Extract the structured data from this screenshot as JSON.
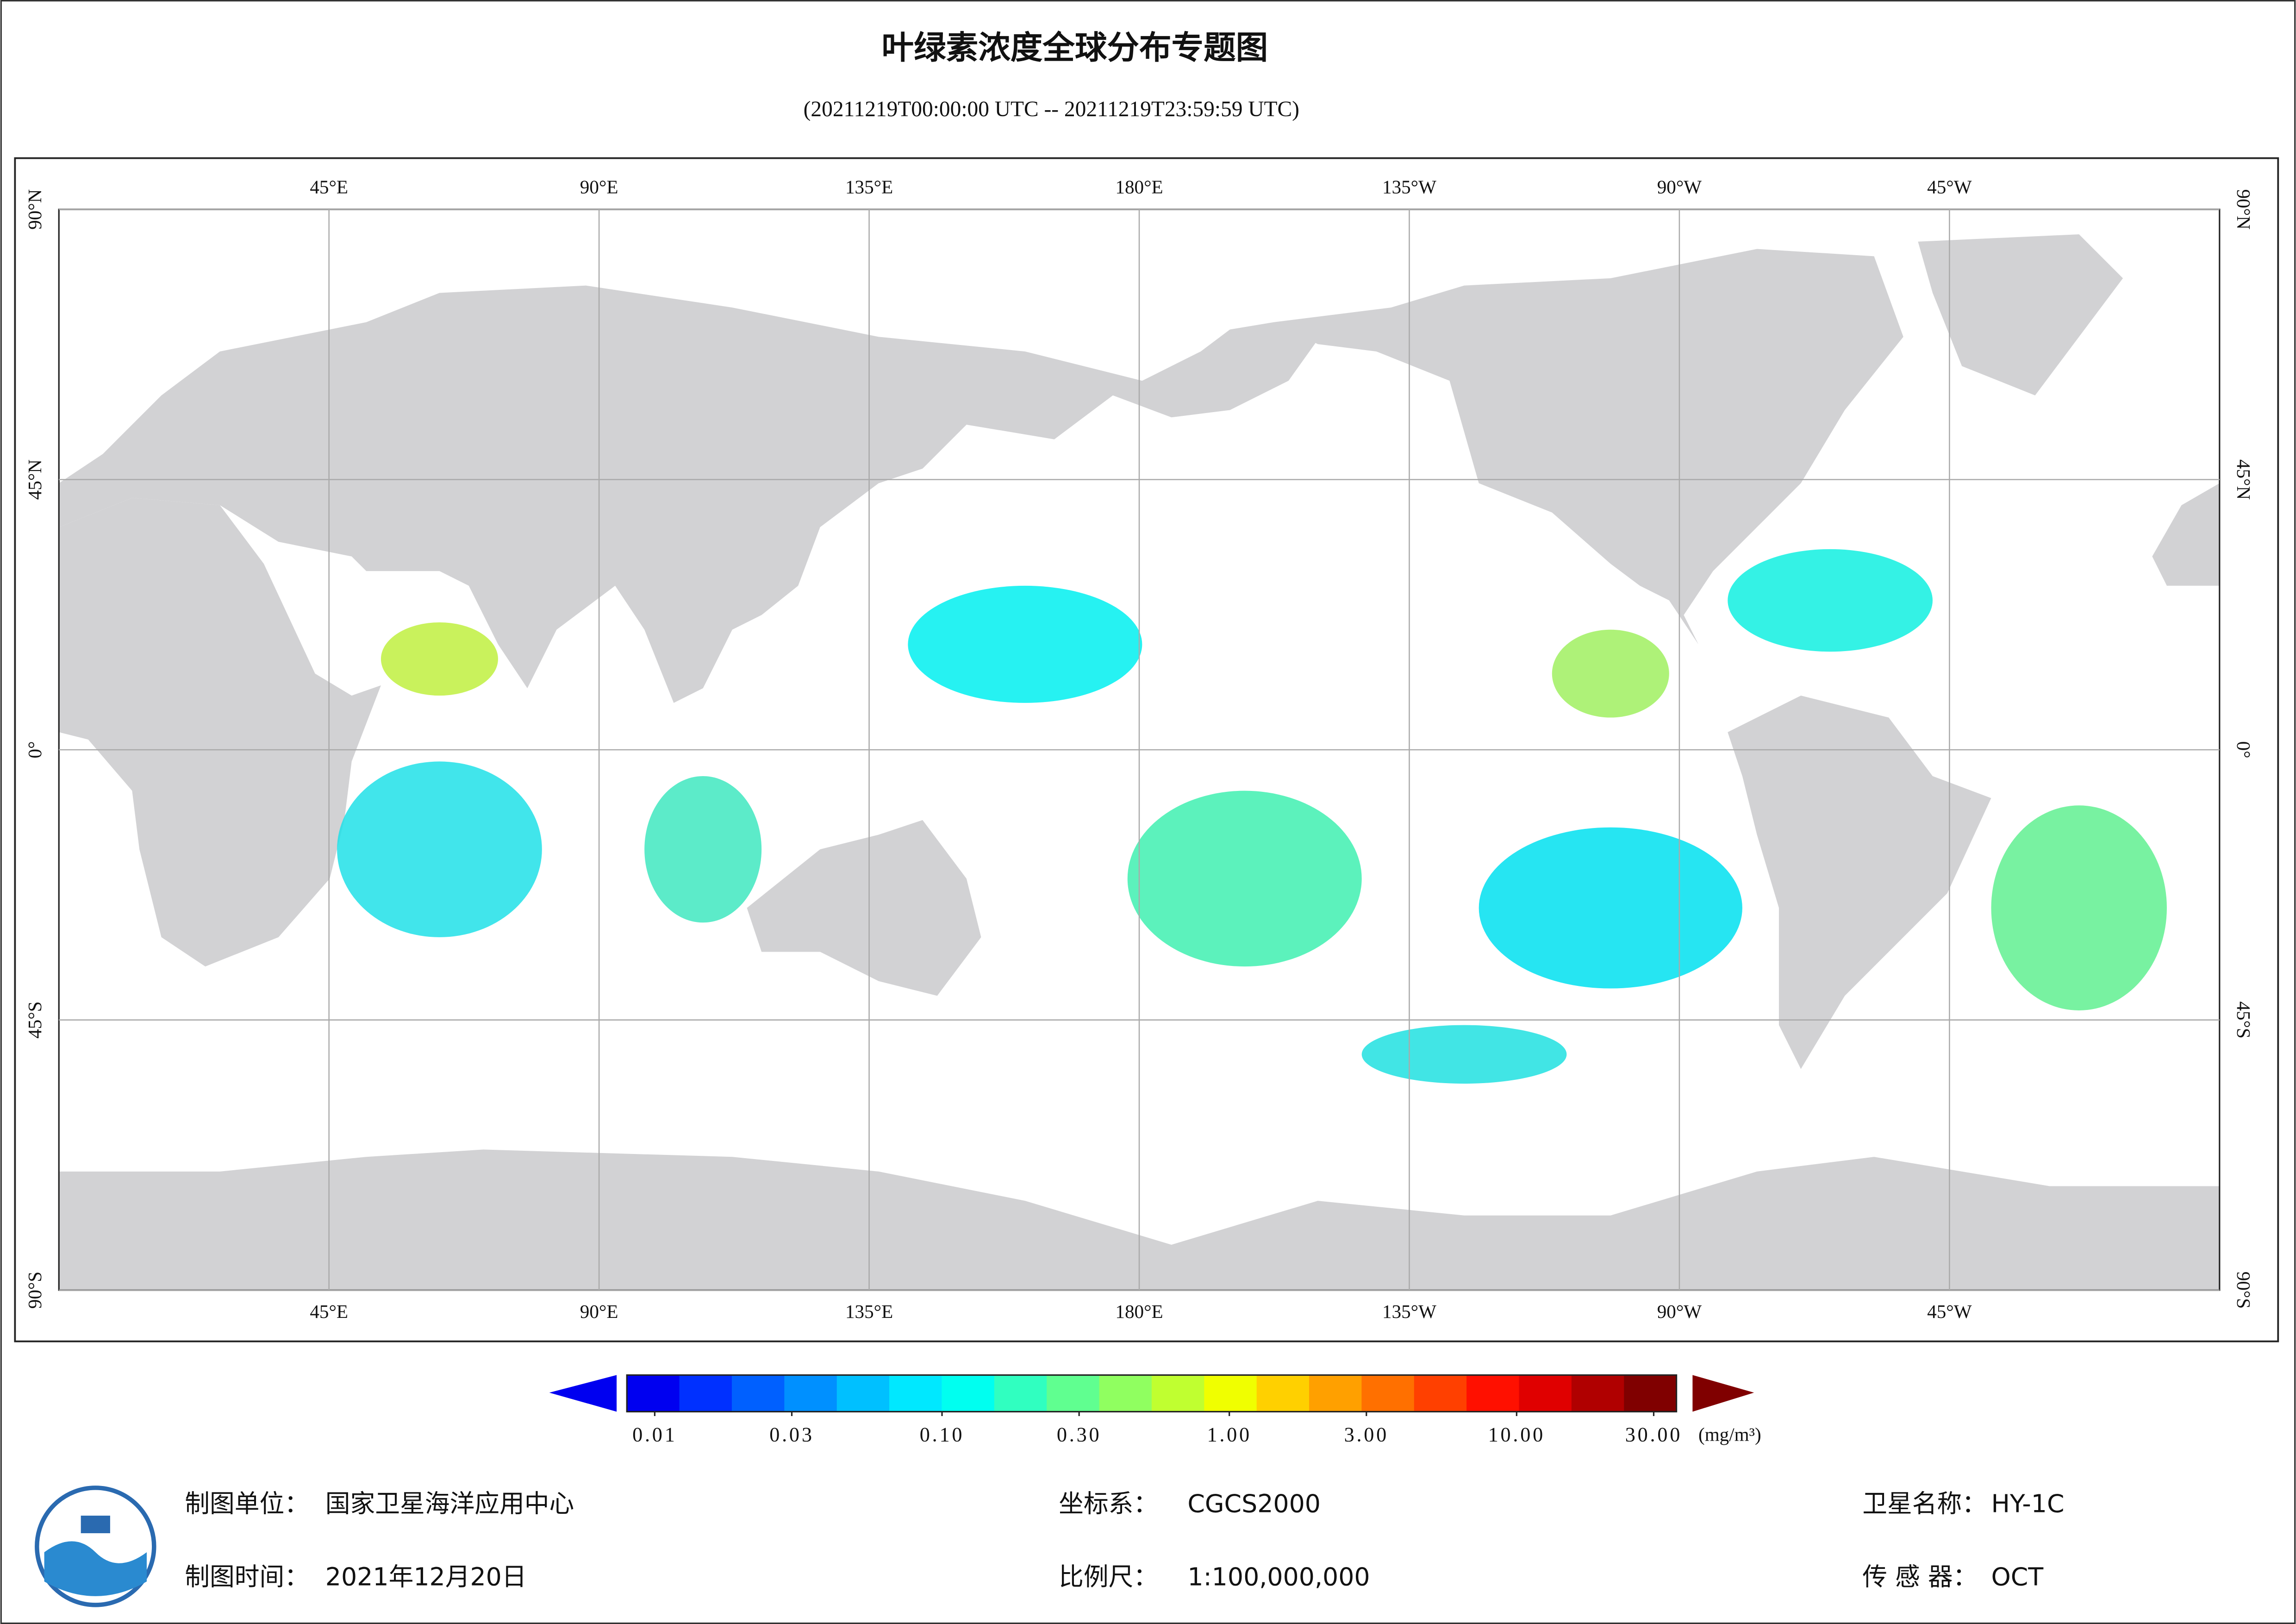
{
  "header": {
    "title": "叶绿素浓度全球分布专题图",
    "subtitle": "(20211219T00:00:00 UTC -- 20211219T23:59:59 UTC)"
  },
  "map": {
    "xlim": [
      0,
      360
    ],
    "ylim": [
      -90,
      90
    ],
    "lon_ticks": [
      {
        "value": 45,
        "label": "45°E"
      },
      {
        "value": 90,
        "label": "90°E"
      },
      {
        "value": 135,
        "label": "135°E"
      },
      {
        "value": 180,
        "label": "180°E"
      },
      {
        "value": -135,
        "label": "135°W"
      },
      {
        "value": -90,
        "label": "90°W"
      },
      {
        "value": -45,
        "label": "45°W"
      }
    ],
    "lat_ticks": [
      {
        "value": 90,
        "label": "90°N"
      },
      {
        "value": 45,
        "label": "45°N"
      },
      {
        "value": 0,
        "label": "0°"
      },
      {
        "value": -45,
        "label": "45°S"
      },
      {
        "value": -90,
        "label": "90°S"
      }
    ],
    "grid": true,
    "land_color": "#d2d2d4"
  },
  "colorbar": {
    "log_scale": true,
    "lim": [
      0.008,
      36
    ],
    "ticks": [
      0.01,
      0.03,
      {
        "value": 0.1,
        "label": "0.10"
      },
      {
        "value": 0.3,
        "label": "0.30"
      },
      {
        "value": 1,
        "label": "1.00"
      },
      {
        "value": 3,
        "label": "3.00"
      },
      {
        "value": 10,
        "label": "10.00"
      },
      {
        "value": 30,
        "label": "30.00"
      }
    ],
    "unit": "(mg/m³)",
    "colors": [
      "#0000f0",
      "#0030ff",
      "#0060ff",
      "#0090ff",
      "#00c0ff",
      "#00e8ff",
      "#00fff0",
      "#30ffc0",
      "#60ff90",
      "#90ff60",
      "#c0ff30",
      "#f0ff00",
      "#ffd000",
      "#ffa000",
      "#ff7000",
      "#ff4000",
      "#ff1000",
      "#e00000",
      "#b00000",
      "#800000"
    ]
  },
  "footer": {
    "unit_label": "制图单位：",
    "unit": "国家卫星海洋应用中心",
    "time_label": "制图时间：",
    "time": "2021年12月20日",
    "crs_label": "坐标系：",
    "crs": "CGCS2000",
    "scale_label": "比例尺：",
    "scale": "1:100,000,000",
    "sat_label": "卫星名称：",
    "sat": "HY-1C",
    "sensor_label": "传 感 器：",
    "sensor": "OCT"
  }
}
